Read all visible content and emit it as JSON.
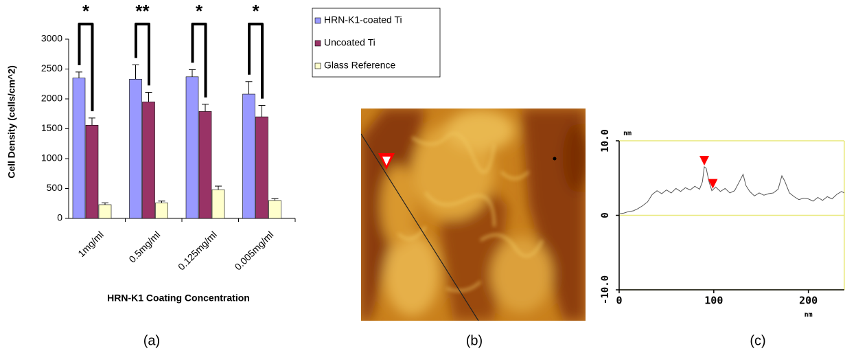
{
  "panels": [
    "(a)",
    "(b)",
    "(c)"
  ],
  "chart_data": [
    {
      "type": "bar",
      "ylabel": "Cell Density (cells/cm^2)",
      "xlabel": "HRN-K1 Coating Concentration",
      "categories": [
        "1mg/ml",
        "0.5mg/ml",
        "0.125mg/ml",
        "0.005mg/ml"
      ],
      "series": [
        {
          "name": "HRN-K1-coated Ti",
          "color": "#9999ff",
          "values": [
            2350,
            2330,
            2370,
            2080
          ],
          "errors": [
            100,
            240,
            120,
            210
          ]
        },
        {
          "name": "Uncoated Ti",
          "color": "#993366",
          "values": [
            1560,
            1950,
            1790,
            1700
          ],
          "errors": [
            120,
            160,
            120,
            190
          ]
        },
        {
          "name": "Glass Reference",
          "color": "#ffffcc",
          "values": [
            230,
            260,
            480,
            300
          ],
          "errors": [
            30,
            30,
            60,
            30
          ]
        }
      ],
      "significance": [
        "*",
        "**",
        "*",
        "*"
      ],
      "ylim": [
        0,
        3000
      ],
      "yticks": [
        0,
        500,
        1000,
        1500,
        2000,
        2500,
        3000
      ],
      "legend": "right"
    },
    {
      "type": "line",
      "ylabel": "nm",
      "xlabel": "nm",
      "x": [
        0,
        5,
        10,
        15,
        20,
        25,
        30,
        35,
        40,
        45,
        50,
        55,
        60,
        65,
        70,
        75,
        80,
        85,
        88,
        90,
        92,
        95,
        98,
        102,
        107,
        112,
        117,
        122,
        127,
        131,
        134,
        138,
        143,
        148,
        153,
        158,
        163,
        168,
        172,
        175,
        180,
        185,
        190,
        195,
        200,
        205,
        210,
        215,
        220,
        225,
        230,
        235,
        238
      ],
      "series": [
        {
          "color": "#555555",
          "values": [
            0.2,
            0.3,
            0.5,
            0.6,
            0.9,
            1.3,
            1.8,
            2.8,
            3.3,
            2.9,
            3.4,
            3.0,
            3.6,
            3.2,
            3.7,
            3.4,
            3.9,
            3.5,
            4.5,
            6.5,
            6.3,
            4.5,
            3.3,
            3.8,
            3.2,
            3.6,
            3.0,
            3.3,
            4.5,
            5.5,
            4.0,
            3.2,
            2.6,
            3.0,
            2.7,
            2.9,
            3.0,
            3.5,
            5.3,
            4.6,
            3.0,
            2.5,
            2.1,
            2.3,
            2.2,
            1.9,
            2.4,
            2.0,
            2.5,
            2.2,
            2.8,
            3.2,
            3.0
          ]
        }
      ],
      "markers": {
        "color": "#ff0000",
        "x": [
          90,
          99
        ],
        "y": [
          6.5,
          3.4
        ]
      },
      "xlim": [
        0,
        238
      ],
      "ylim": [
        -10,
        10
      ],
      "xticks": [
        0,
        100,
        200
      ],
      "yticks": [
        {
          "value": -10,
          "label": "-10.0"
        },
        0,
        {
          "value": 10,
          "label": "10.0"
        }
      ],
      "grid": true,
      "grid_color": "#e8e87a"
    }
  ]
}
